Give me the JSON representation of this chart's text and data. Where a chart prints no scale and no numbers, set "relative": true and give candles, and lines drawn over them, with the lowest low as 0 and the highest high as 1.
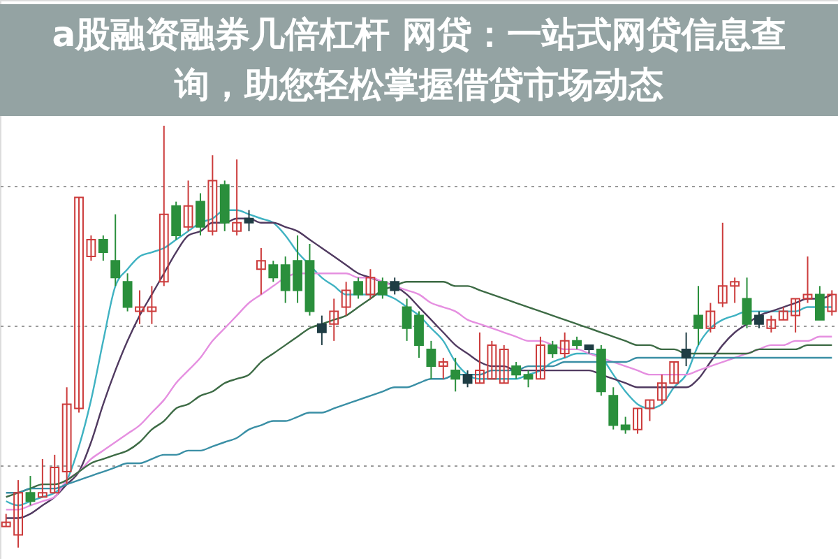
{
  "chart_data": {
    "type": "candlestick",
    "title": "a股融资融券几倍杠杆 网贷：一站式网贷信息查询，助您轻松掌握借贷市场动态",
    "relative": true,
    "grid": "y",
    "categories": [
      null,
      null,
      null,
      null,
      null,
      null,
      null,
      null,
      null,
      null,
      null,
      null,
      null,
      null,
      null,
      null,
      null,
      null,
      null,
      null,
      null,
      null,
      null,
      null,
      null,
      null,
      null,
      null,
      null,
      null,
      null,
      null,
      null,
      null,
      null,
      null,
      null,
      null,
      null,
      null,
      null,
      null,
      null,
      null,
      null,
      null,
      null,
      null,
      null,
      null,
      null,
      null,
      null,
      null,
      null,
      null,
      null,
      null,
      null,
      null,
      null,
      null,
      null,
      null,
      null,
      null,
      null,
      null,
      null
    ],
    "ohlc": [
      [
        0.05,
        0.08,
        0.05,
        0.06
      ],
      [
        0.03,
        0.16,
        0.0,
        0.13
      ],
      [
        0.13,
        0.17,
        0.1,
        0.11
      ],
      [
        0.12,
        0.21,
        0.12,
        0.13
      ],
      [
        0.13,
        0.22,
        0.13,
        0.19
      ],
      [
        0.18,
        0.38,
        0.15,
        0.34
      ],
      [
        0.33,
        0.83,
        0.32,
        0.83
      ],
      [
        0.69,
        0.74,
        0.68,
        0.73
      ],
      [
        0.73,
        0.74,
        0.68,
        0.7
      ],
      [
        0.68,
        0.79,
        0.62,
        0.64
      ],
      [
        0.63,
        0.65,
        0.56,
        0.57
      ],
      [
        0.56,
        0.61,
        0.53,
        0.57
      ],
      [
        0.56,
        0.62,
        0.53,
        0.57
      ],
      [
        0.63,
        1.0,
        0.62,
        0.79
      ],
      [
        0.81,
        0.82,
        0.73,
        0.74
      ],
      [
        0.76,
        0.87,
        0.75,
        0.81
      ],
      [
        0.82,
        0.84,
        0.74,
        0.76
      ],
      [
        0.75,
        0.93,
        0.74,
        0.87
      ],
      [
        0.86,
        0.87,
        0.75,
        0.77
      ],
      [
        0.75,
        0.92,
        0.74,
        0.77
      ],
      [
        0.78,
        0.8,
        0.75,
        0.77
      ],
      [
        0.66,
        0.71,
        0.6,
        0.68
      ],
      [
        0.67,
        0.68,
        0.63,
        0.64
      ],
      [
        0.67,
        0.69,
        0.58,
        0.61
      ],
      [
        0.68,
        0.74,
        0.58,
        0.61
      ],
      [
        0.68,
        0.72,
        0.55,
        0.56
      ],
      [
        0.53,
        0.55,
        0.48,
        0.51
      ],
      [
        0.53,
        0.59,
        0.49,
        0.56
      ],
      [
        0.57,
        0.63,
        0.55,
        0.61
      ],
      [
        0.63,
        0.64,
        0.59,
        0.6
      ],
      [
        0.6,
        0.66,
        0.59,
        0.64
      ],
      [
        0.63,
        0.64,
        0.59,
        0.6
      ],
      [
        0.63,
        0.64,
        0.6,
        0.61
      ],
      [
        0.57,
        0.59,
        0.49,
        0.52
      ],
      [
        0.55,
        0.56,
        0.45,
        0.48
      ],
      [
        0.47,
        0.49,
        0.4,
        0.43
      ],
      [
        0.43,
        0.45,
        0.4,
        0.44
      ],
      [
        0.42,
        0.45,
        0.37,
        0.4
      ],
      [
        0.41,
        0.42,
        0.38,
        0.39
      ],
      [
        0.39,
        0.51,
        0.39,
        0.42
      ],
      [
        0.4,
        0.49,
        0.4,
        0.48
      ],
      [
        0.39,
        0.48,
        0.39,
        0.47
      ],
      [
        0.43,
        0.44,
        0.4,
        0.41
      ],
      [
        0.41,
        0.42,
        0.38,
        0.4
      ],
      [
        0.4,
        0.5,
        0.4,
        0.48
      ],
      [
        0.48,
        0.49,
        0.45,
        0.46
      ],
      [
        0.46,
        0.51,
        0.45,
        0.49
      ],
      [
        0.49,
        0.5,
        0.47,
        0.48
      ],
      [
        0.48,
        0.48,
        0.46,
        0.47
      ],
      [
        0.47,
        0.48,
        0.36,
        0.37
      ],
      [
        0.36,
        0.38,
        0.28,
        0.29
      ],
      [
        0.29,
        0.31,
        0.27,
        0.28
      ],
      [
        0.28,
        0.33,
        0.27,
        0.33
      ],
      [
        0.33,
        0.35,
        0.3,
        0.35
      ],
      [
        0.35,
        0.41,
        0.34,
        0.39
      ],
      [
        0.39,
        0.44,
        0.39,
        0.44
      ],
      [
        0.47,
        0.51,
        0.43,
        0.45
      ],
      [
        0.55,
        0.62,
        0.48,
        0.52
      ],
      [
        0.52,
        0.58,
        0.51,
        0.56
      ],
      [
        0.58,
        0.77,
        0.57,
        0.62
      ],
      [
        0.62,
        0.64,
        0.58,
        0.63
      ],
      [
        0.59,
        0.64,
        0.52,
        0.53
      ],
      [
        0.55,
        0.56,
        0.52,
        0.53
      ],
      [
        0.52,
        0.55,
        0.51,
        0.54
      ],
      [
        0.54,
        0.57,
        0.54,
        0.56
      ],
      [
        0.55,
        0.59,
        0.51,
        0.59
      ],
      [
        0.59,
        0.69,
        0.58,
        0.6
      ],
      [
        0.6,
        0.62,
        0.54,
        0.54
      ],
      [
        0.56,
        0.61,
        0.55,
        0.6
      ]
    ],
    "colors": [
      "#cc3b3b",
      "#cc3b3b",
      "#2a8f3c",
      "#cc3b3b",
      "#cc3b3b",
      "#cc3b3b",
      "#cc3b3b",
      "#cc3b3b",
      "#2a8f3c",
      "#2a8f3c",
      "#2a8f3c",
      "#cc3b3b",
      "#cc3b3b",
      "#cc3b3b",
      "#2a8f3c",
      "#cc3b3b",
      "#2a8f3c",
      "#cc3b3b",
      "#2a8f3c",
      "#cc3b3b",
      "#1f3d44",
      "#cc3b3b",
      "#2a8f3c",
      "#2a8f3c",
      "#2a8f3c",
      "#2a8f3c",
      "#1f3d44",
      "#cc3b3b",
      "#cc3b3b",
      "#2a8f3c",
      "#cc3b3b",
      "#2a8f3c",
      "#1f3d44",
      "#2a8f3c",
      "#2a8f3c",
      "#2a8f3c",
      "#cc3b3b",
      "#2a8f3c",
      "#1f3d44",
      "#cc3b3b",
      "#cc3b3b",
      "#cc3b3b",
      "#2a8f3c",
      "#2a8f3c",
      "#cc3b3b",
      "#2a8f3c",
      "#cc3b3b",
      "#2a8f3c",
      "#1f3d44",
      "#2a8f3c",
      "#2a8f3c",
      "#2a8f3c",
      "#cc3b3b",
      "#cc3b3b",
      "#cc3b3b",
      "#cc3b3b",
      "#1f3d44",
      "#2a8f3c",
      "#cc3b3b",
      "#cc3b3b",
      "#cc3b3b",
      "#2a8f3c",
      "#1f3d44",
      "#cc3b3b",
      "#cc3b3b",
      "#cc3b3b",
      "#cc3b3b",
      "#2a8f3c",
      "#cc3b3b"
    ],
    "series": [
      {
        "type": "line",
        "color": "#3fb2c2",
        "values": [
          0.11,
          0.1,
          0.11,
          0.12,
          0.13,
          0.16,
          0.24,
          0.35,
          0.49,
          0.62,
          0.66,
          0.69,
          0.7,
          0.71,
          0.73,
          0.75,
          0.77,
          0.78,
          0.8,
          0.8,
          0.79,
          0.78,
          0.77,
          0.74,
          0.7,
          0.67,
          0.64,
          0.62,
          0.6,
          0.6,
          0.6,
          0.6,
          0.59,
          0.57,
          0.55,
          0.52,
          0.49,
          0.44,
          0.41,
          0.4,
          0.4,
          0.4,
          0.4,
          0.41,
          0.42,
          0.44,
          0.45,
          0.46,
          0.46,
          0.45,
          0.41,
          0.37,
          0.34,
          0.33,
          0.34,
          0.38,
          0.41,
          0.48,
          0.52,
          0.54,
          0.55,
          0.56,
          0.56,
          0.56,
          0.56,
          0.56,
          0.57,
          0.57,
          0.57
        ]
      },
      {
        "type": "line",
        "color": "#503a60",
        "values": [
          0.07,
          0.07,
          0.08,
          0.1,
          0.12,
          0.15,
          0.18,
          0.25,
          0.34,
          0.42,
          0.49,
          0.55,
          0.6,
          0.65,
          0.7,
          0.74,
          0.75,
          0.77,
          0.77,
          0.78,
          0.78,
          0.77,
          0.77,
          0.76,
          0.75,
          0.73,
          0.71,
          0.69,
          0.67,
          0.65,
          0.64,
          0.63,
          0.62,
          0.6,
          0.57,
          0.54,
          0.51,
          0.48,
          0.46,
          0.44,
          0.43,
          0.43,
          0.42,
          0.42,
          0.42,
          0.42,
          0.42,
          0.42,
          0.42,
          0.41,
          0.4,
          0.39,
          0.38,
          0.38,
          0.38,
          0.38,
          0.38,
          0.4,
          0.44,
          0.48,
          0.51,
          0.53,
          0.55,
          0.56,
          0.57,
          0.58,
          0.59,
          0.59,
          0.6
        ]
      },
      {
        "type": "line",
        "color": "#e58fe0",
        "values": [
          0.09,
          0.09,
          0.1,
          0.11,
          0.12,
          0.16,
          0.18,
          0.21,
          0.23,
          0.25,
          0.27,
          0.29,
          0.32,
          0.35,
          0.39,
          0.42,
          0.45,
          0.49,
          0.52,
          0.55,
          0.58,
          0.6,
          0.62,
          0.64,
          0.65,
          0.65,
          0.65,
          0.65,
          0.65,
          0.64,
          0.64,
          0.63,
          0.62,
          0.61,
          0.6,
          0.58,
          0.57,
          0.56,
          0.54,
          0.53,
          0.52,
          0.51,
          0.5,
          0.49,
          0.49,
          0.48,
          0.47,
          0.47,
          0.46,
          0.45,
          0.44,
          0.43,
          0.42,
          0.41,
          0.41,
          0.41,
          0.41,
          0.42,
          0.43,
          0.44,
          0.45,
          0.46,
          0.47,
          0.48,
          0.48,
          0.49,
          0.49,
          0.5,
          0.5
        ]
      },
      {
        "type": "line",
        "color": "#3d6b45",
        "values": [
          0.12,
          0.13,
          0.14,
          0.15,
          0.15,
          0.16,
          0.18,
          0.2,
          0.21,
          0.22,
          0.23,
          0.25,
          0.28,
          0.3,
          0.33,
          0.34,
          0.36,
          0.37,
          0.39,
          0.4,
          0.41,
          0.44,
          0.46,
          0.48,
          0.5,
          0.52,
          0.53,
          0.54,
          0.55,
          0.57,
          0.59,
          0.61,
          0.62,
          0.63,
          0.63,
          0.63,
          0.63,
          0.62,
          0.62,
          0.61,
          0.6,
          0.59,
          0.58,
          0.57,
          0.56,
          0.55,
          0.54,
          0.53,
          0.52,
          0.51,
          0.5,
          0.49,
          0.48,
          0.48,
          0.47,
          0.47,
          0.46,
          0.46,
          0.46,
          0.46,
          0.46,
          0.46,
          0.47,
          0.47,
          0.47,
          0.47,
          0.48,
          0.48,
          0.48
        ]
      },
      {
        "type": "line",
        "color": "#3a8fa5",
        "values": [
          0.13,
          0.13,
          0.14,
          0.14,
          0.14,
          0.15,
          0.16,
          0.17,
          0.18,
          0.19,
          0.2,
          0.2,
          0.21,
          0.22,
          0.22,
          0.23,
          0.23,
          0.24,
          0.25,
          0.26,
          0.28,
          0.29,
          0.3,
          0.3,
          0.31,
          0.32,
          0.32,
          0.33,
          0.34,
          0.35,
          0.36,
          0.37,
          0.38,
          0.38,
          0.39,
          0.4,
          0.4,
          0.41,
          0.41,
          0.41,
          0.42,
          0.42,
          0.42,
          0.43,
          0.43,
          0.43,
          0.44,
          0.44,
          0.44,
          0.44,
          0.44,
          0.44,
          0.45,
          0.45,
          0.45,
          0.45,
          0.45,
          0.45,
          0.45,
          0.45,
          0.45,
          0.45,
          0.45,
          0.45,
          0.45,
          0.45,
          0.45,
          0.45,
          0.45
        ]
      }
    ]
  }
}
